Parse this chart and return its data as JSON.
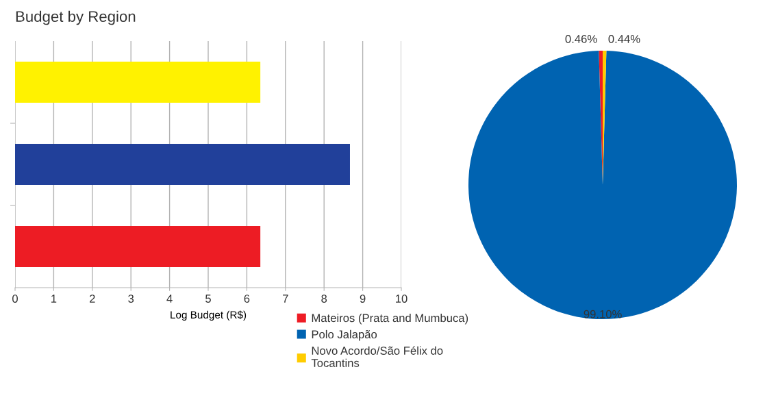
{
  "chart_data": [
    {
      "type": "bar",
      "title": "Budget by Region",
      "orientation": "horizontal",
      "categories": [
        null,
        null,
        null
      ],
      "values": [
        6.35,
        8.67,
        6.35
      ],
      "colors": [
        "#fff200",
        "#21409a",
        "#ed1c24"
      ],
      "xlabel": "Log Budget (R$)",
      "xlim": [
        0,
        10
      ],
      "xticks": [
        0,
        1,
        2,
        3,
        4,
        5,
        6,
        7,
        8,
        9,
        10
      ],
      "grid": "x"
    },
    {
      "type": "pie",
      "categories": [
        "Mateiros (Prata and Mumbuca)",
        "Polo Jalapão",
        "Novo Acordo/São Félix do Tocantins"
      ],
      "values": [
        0.46,
        99.1,
        0.44
      ],
      "colors": [
        "#ee1c25",
        "#0063b1",
        "#ffcc00"
      ],
      "value_labels": [
        "0.46%",
        "99.10%",
        "0.44%"
      ],
      "legend": "bottom left"
    }
  ]
}
